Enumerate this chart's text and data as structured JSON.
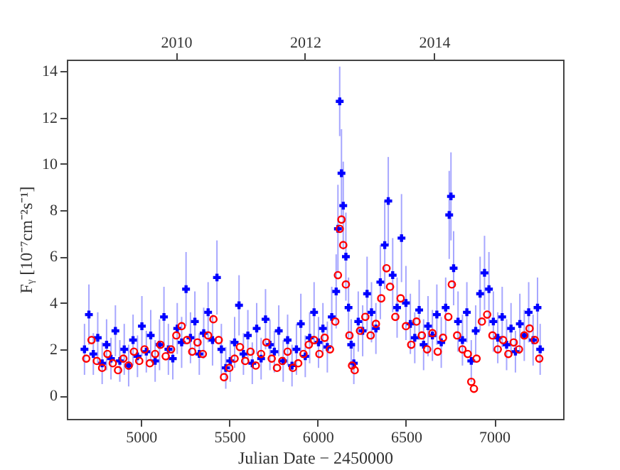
{
  "chart_data": {
    "type": "scatter",
    "xlabel": "Julian Date − 2450000",
    "ylabel": "Fᵧ [10⁻⁷cm⁻²s⁻¹]",
    "xlim": [
      4580,
      7390
    ],
    "xticks": [
      5000,
      5500,
      6000,
      6500,
      7000
    ],
    "x2lim": [
      2008.31,
      2016.0
    ],
    "x2ticks": [
      2010,
      2012,
      2014
    ],
    "ylim": [
      -1,
      14.5
    ],
    "yticks": [
      0,
      2,
      4,
      6,
      8,
      10,
      12,
      14
    ],
    "series": [
      {
        "color": "#0000ff",
        "marker": "cross",
        "x": [
          4680,
          4705,
          4730,
          4755,
          4780,
          4805,
          4830,
          4855,
          4880,
          4905,
          4930,
          4955,
          4980,
          5005,
          5030,
          5055,
          5080,
          5105,
          5130,
          5155,
          5180,
          5205,
          5230,
          5255,
          5280,
          5305,
          5330,
          5355,
          5380,
          5405,
          5430,
          5455,
          5480,
          5505,
          5530,
          5555,
          5580,
          5605,
          5630,
          5655,
          5680,
          5705,
          5730,
          5755,
          5780,
          5805,
          5830,
          5855,
          5880,
          5905,
          5930,
          5955,
          5980,
          6005,
          6030,
          6055,
          6080,
          6105,
          6115,
          6125,
          6135,
          6145,
          6160,
          6175,
          6190,
          6205,
          6230,
          6255,
          6280,
          6305,
          6330,
          6355,
          6380,
          6400,
          6425,
          6450,
          6475,
          6500,
          6525,
          6550,
          6575,
          6600,
          6625,
          6650,
          6675,
          6700,
          6725,
          6745,
          6755,
          6770,
          6795,
          6820,
          6845,
          6870,
          6895,
          6920,
          6945,
          6970,
          6995,
          7020,
          7045,
          7070,
          7095,
          7120,
          7145,
          7170,
          7195,
          7220,
          7245,
          7260
        ],
        "values": [
          2.0,
          3.5,
          1.8,
          2.5,
          1.4,
          2.2,
          1.6,
          2.8,
          1.5,
          2.0,
          1.3,
          2.4,
          1.7,
          3.0,
          1.9,
          2.6,
          1.5,
          2.2,
          3.4,
          2.0,
          1.6,
          2.9,
          2.3,
          4.6,
          2.5,
          3.2,
          1.8,
          2.7,
          3.6,
          2.4,
          5.1,
          2.0,
          1.2,
          1.5,
          2.3,
          3.9,
          1.8,
          2.6,
          1.4,
          2.9,
          1.6,
          3.3,
          2.2,
          1.9,
          2.8,
          1.5,
          2.4,
          1.3,
          2.0,
          3.1,
          1.7,
          2.5,
          3.6,
          2.3,
          2.9,
          2.1,
          3.4,
          4.5,
          7.2,
          12.7,
          9.6,
          8.2,
          6.0,
          3.8,
          2.2,
          1.4,
          3.2,
          2.8,
          4.4,
          3.6,
          2.9,
          4.9,
          6.5,
          8.4,
          5.2,
          3.8,
          6.8,
          4.0,
          3.1,
          2.5,
          3.7,
          2.2,
          3.0,
          2.6,
          3.5,
          2.3,
          3.8,
          7.8,
          8.6,
          5.5,
          3.2,
          2.4,
          3.6,
          1.5,
          2.8,
          4.4,
          5.3,
          4.6,
          3.2,
          2.5,
          3.4,
          2.2,
          2.9,
          1.9,
          3.1,
          2.6,
          3.6,
          2.4,
          3.8,
          2.0
        ],
        "errors": [
          1.1,
          1.3,
          0.9,
          1.1,
          0.9,
          1.1,
          0.9,
          1.1,
          0.9,
          1.1,
          0.9,
          1.1,
          0.9,
          1.3,
          0.9,
          1.1,
          0.9,
          1.1,
          1.3,
          1.1,
          0.9,
          1.1,
          1.1,
          1.6,
          1.1,
          1.3,
          0.9,
          1.1,
          1.3,
          1.1,
          1.6,
          1.1,
          0.9,
          0.9,
          1.1,
          1.3,
          0.9,
          1.1,
          0.9,
          1.1,
          0.9,
          1.3,
          1.1,
          0.9,
          1.1,
          0.9,
          1.1,
          0.9,
          1.1,
          1.3,
          0.9,
          1.1,
          1.3,
          1.1,
          1.1,
          1.1,
          1.3,
          1.6,
          1.9,
          1.5,
          1.9,
          1.9,
          1.9,
          1.3,
          1.1,
          0.9,
          1.3,
          1.1,
          1.6,
          1.3,
          1.1,
          1.6,
          1.9,
          1.9,
          1.6,
          1.3,
          1.9,
          1.6,
          1.3,
          1.1,
          1.3,
          1.1,
          1.3,
          1.1,
          1.3,
          1.1,
          1.3,
          1.9,
          1.9,
          1.6,
          1.3,
          1.1,
          1.3,
          0.9,
          1.1,
          1.6,
          1.6,
          1.6,
          1.3,
          1.1,
          1.3,
          1.1,
          1.1,
          0.9,
          1.3,
          1.1,
          1.3,
          1.1,
          1.3,
          1.1
        ]
      },
      {
        "color": "#ff0000",
        "marker": "circle",
        "x": [
          4690,
          4720,
          4750,
          4780,
          4810,
          4840,
          4870,
          4900,
          4930,
          4960,
          4990,
          5020,
          5050,
          5080,
          5110,
          5140,
          5170,
          5200,
          5230,
          5260,
          5290,
          5320,
          5350,
          5380,
          5410,
          5440,
          5470,
          5500,
          5530,
          5560,
          5590,
          5620,
          5650,
          5680,
          5710,
          5740,
          5770,
          5800,
          5830,
          5860,
          5890,
          5920,
          5950,
          5980,
          6010,
          6040,
          6070,
          6100,
          6115,
          6125,
          6135,
          6145,
          6160,
          6180,
          6195,
          6210,
          6240,
          6270,
          6300,
          6330,
          6360,
          6390,
          6410,
          6440,
          6470,
          6500,
          6530,
          6560,
          6590,
          6620,
          6650,
          6680,
          6710,
          6740,
          6760,
          6790,
          6820,
          6850,
          6870,
          6885,
          6900,
          6930,
          6960,
          6990,
          7020,
          7050,
          7080,
          7110,
          7140,
          7170,
          7200,
          7230,
          7255
        ],
        "values": [
          1.6,
          2.4,
          1.5,
          1.2,
          1.8,
          1.4,
          1.1,
          1.6,
          1.3,
          1.9,
          1.5,
          2.0,
          1.4,
          1.8,
          2.2,
          1.7,
          2.0,
          2.6,
          3.0,
          2.4,
          1.9,
          2.3,
          1.8,
          2.6,
          3.3,
          2.4,
          0.8,
          1.2,
          1.6,
          2.1,
          1.5,
          1.9,
          1.3,
          1.8,
          2.3,
          1.6,
          1.2,
          1.5,
          1.9,
          1.2,
          1.4,
          1.8,
          2.2,
          2.4,
          1.8,
          2.5,
          2.0,
          3.2,
          5.2,
          7.2,
          7.6,
          6.5,
          4.8,
          2.6,
          1.3,
          1.1,
          2.8,
          3.4,
          2.6,
          3.1,
          4.2,
          5.5,
          4.7,
          3.4,
          4.2,
          3.0,
          2.2,
          3.2,
          2.6,
          2.0,
          2.7,
          1.9,
          2.5,
          3.4,
          4.8,
          2.6,
          2.0,
          1.8,
          0.6,
          0.3,
          1.6,
          3.2,
          3.5,
          2.6,
          2.0,
          2.4,
          1.8,
          2.3,
          2.0,
          2.6,
          2.9,
          2.4,
          1.6
        ]
      }
    ]
  }
}
